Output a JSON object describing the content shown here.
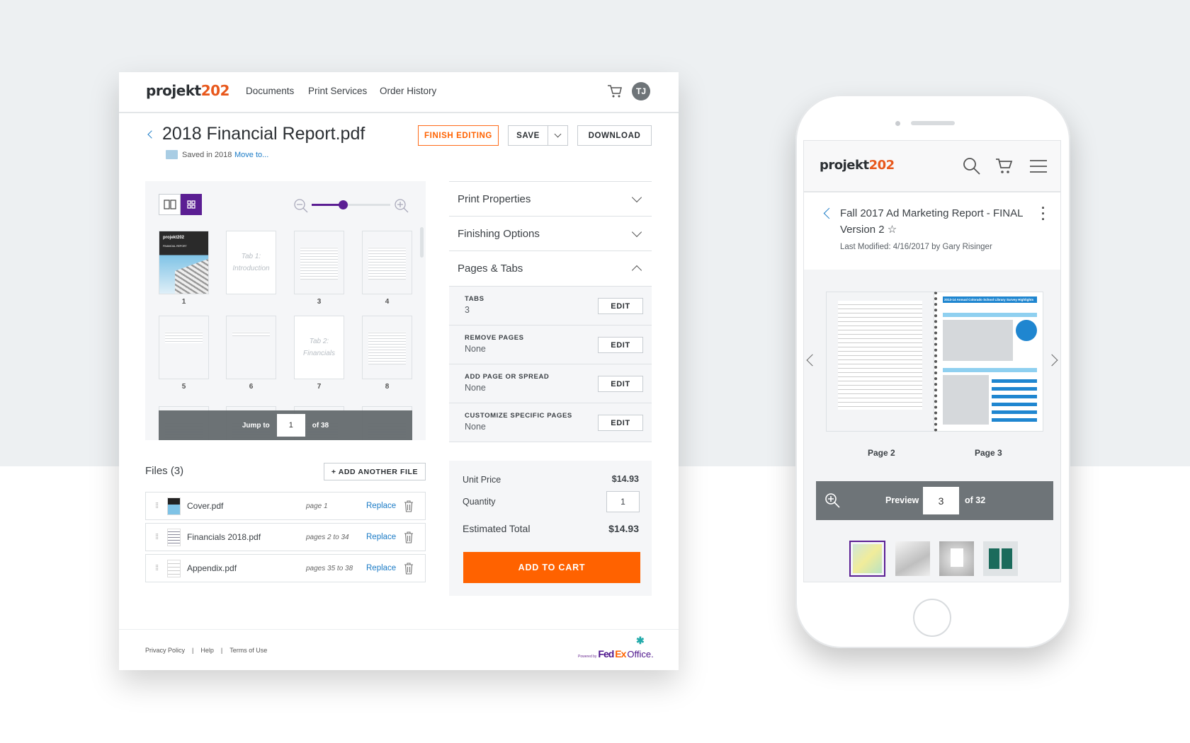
{
  "brand": {
    "logo_main": "projekt",
    "logo_accent": "202",
    "accent_color": "#e8581c",
    "purple": "#5b1e93",
    "cta_color": "#ff6200"
  },
  "desktop": {
    "nav": {
      "items": [
        "Documents",
        "Print Services",
        "Order History"
      ],
      "avatar": "TJ"
    },
    "header": {
      "title": "2018 Financial Report.pdf",
      "saved": "Saved in 2018",
      "move_link": "Move to...",
      "finish_editing": "FINISH EDITING",
      "save": "SAVE",
      "download": "DOWNLOAD"
    },
    "viewer": {
      "zoom_level_percent": 40,
      "cover_logo": "projekt202",
      "cover_title": "FINANCIAL REPORT",
      "tab1": [
        "Tab 1:",
        "Introduction"
      ],
      "tab2": [
        "Tab 2:",
        "Financials"
      ],
      "page_labels": [
        "1",
        "",
        "3",
        "4",
        "5",
        "6",
        "7",
        "8"
      ],
      "jump_label": "Jump to",
      "jump_value": "1",
      "jump_total": "of 38"
    },
    "files": {
      "title": "Files (3)",
      "add_button": "+ ADD ANOTHER FILE",
      "items": [
        {
          "name": "Cover.pdf",
          "pages": "page 1",
          "action": "Replace"
        },
        {
          "name": "Financials 2018.pdf",
          "pages": "pages 2 to 34",
          "action": "Replace"
        },
        {
          "name": "Appendix.pdf",
          "pages": "pages 35 to 38",
          "action": "Replace"
        }
      ]
    },
    "accordion": {
      "sections": [
        "Print Properties",
        "Finishing Options",
        "Pages & Tabs"
      ],
      "expanded": "Pages & Tabs",
      "rows": [
        {
          "label": "TABS",
          "value": "3",
          "action": "EDIT"
        },
        {
          "label": "REMOVE PAGES",
          "value": "None",
          "action": "EDIT"
        },
        {
          "label": "ADD PAGE OR SPREAD",
          "value": "None",
          "action": "EDIT"
        },
        {
          "label": "CUSTOMIZE SPECIFIC PAGES",
          "value": "None",
          "action": "EDIT"
        }
      ]
    },
    "pricing": {
      "unit_label": "Unit Price",
      "unit_value": "$14.93",
      "qty_label": "Quantity",
      "qty_value": "1",
      "total_label": "Estimated Total",
      "total_value": "$14.93",
      "cta": "ADD TO CART"
    },
    "footer": {
      "links": [
        "Privacy Policy",
        "Help",
        "Terms of Use"
      ],
      "powered": "Powered by",
      "fedex1": "Fed",
      "fedex2": "Ex",
      "fedex3": "Office."
    }
  },
  "mobile": {
    "title": "Fall 2017 Ad Marketing Report - FINAL Version 2",
    "modified": "Last Modified: 4/16/2017 by Gary Risinger",
    "spread_heading": "2013-14 Annual Colorado School Library Survey Highlights",
    "page_left": "Page 2",
    "page_right": "Page 3",
    "preview_label": "Preview",
    "preview_value": "3",
    "preview_total": "of 32"
  }
}
